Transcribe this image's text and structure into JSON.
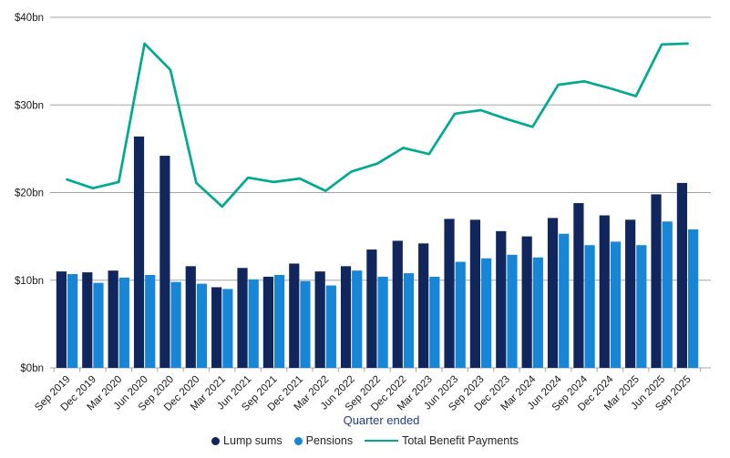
{
  "page": {
    "background": "#FFFFFF"
  },
  "chart_data": {
    "type": "bar",
    "subtype": "grouped-bars-with-line-overlay",
    "title": "",
    "xlabel": "Quarter ended",
    "ylabel": "",
    "ylim": [
      0,
      40
    ],
    "grid": true,
    "legend_position": "bottom",
    "y_ticks": [
      {
        "value": 0,
        "label": "$0bn"
      },
      {
        "value": 10,
        "label": "$10bn"
      },
      {
        "value": 20,
        "label": "$20bn"
      },
      {
        "value": 30,
        "label": "$30bn"
      },
      {
        "value": 40,
        "label": "$40bn"
      }
    ],
    "categories": [
      "Sep 2019",
      "Dec 2019",
      "Mar 2020",
      "Jun 2020",
      "Sep 2020",
      "Dec 2020",
      "Mar 2021",
      "Jun 2021",
      "Sep 2021",
      "Dec 2021",
      "Mar 2022",
      "Jun 2022",
      "Sep 2022",
      "Dec 2022",
      "Mar 2023",
      "Jun 2023",
      "Sep 2023",
      "Dec 2023",
      "Mar 2024",
      "Jun 2024",
      "Sep 2024",
      "Dec 2024",
      "Mar 2025",
      "Jun 2025",
      "Sep 2025"
    ],
    "series": [
      {
        "name": "Lump sums",
        "type": "bar",
        "color": "#12265E",
        "values": [
          11.0,
          10.9,
          11.1,
          26.4,
          24.2,
          11.6,
          9.2,
          11.4,
          10.4,
          11.9,
          11.0,
          11.6,
          13.5,
          14.5,
          14.2,
          17.0,
          16.9,
          15.6,
          15.0,
          17.1,
          18.8,
          17.4,
          16.9,
          19.8,
          21.1
        ]
      },
      {
        "name": "Pensions",
        "type": "bar",
        "color": "#1786D6",
        "values": [
          10.7,
          9.7,
          10.3,
          10.6,
          9.8,
          9.6,
          9.0,
          10.1,
          10.6,
          9.9,
          9.4,
          11.1,
          10.4,
          10.8,
          10.4,
          12.1,
          12.5,
          12.9,
          12.6,
          15.3,
          14.0,
          14.4,
          14.0,
          16.7,
          15.8
        ]
      },
      {
        "name": "Total Benefit Payments",
        "type": "line",
        "color": "#00AA91",
        "values": [
          21.5,
          20.5,
          21.2,
          37.0,
          34.0,
          21.1,
          18.4,
          21.7,
          21.2,
          21.6,
          20.2,
          22.4,
          23.3,
          25.1,
          24.4,
          29.0,
          29.4,
          28.4,
          27.5,
          32.3,
          32.7,
          31.9,
          31.0,
          36.9,
          37.0
        ]
      }
    ]
  },
  "colors": {
    "axis_text": "#1A1A1A",
    "gridline": "#A6A6A6",
    "axis_title_text": "#1F3C96",
    "legend_text": "#262626"
  }
}
